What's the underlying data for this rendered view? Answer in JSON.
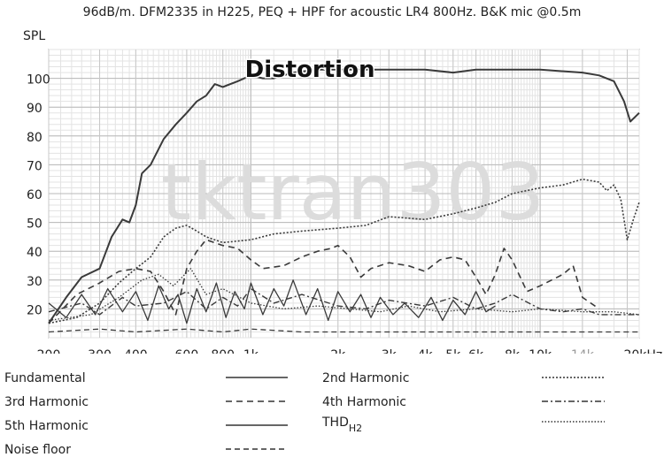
{
  "chart_data": {
    "type": "line",
    "title": "96dB/m. DFM2335 in H225, PEQ + HPF for acoustic LR4 800Hz. B&K mic @0.5m",
    "annotation": "Distortion",
    "watermark": "tktran303",
    "ylabel": "SPL",
    "xlabel": "",
    "x_scale": "log",
    "xlim": [
      200,
      22000
    ],
    "ylim": [
      10,
      110
    ],
    "grid": true,
    "yticks": [
      20,
      30,
      40,
      50,
      60,
      70,
      80,
      90,
      100
    ],
    "ytick_labels": [
      "20",
      "30",
      "40",
      "50",
      "60",
      "70",
      "80",
      "90",
      "100"
    ],
    "xticks": [
      200,
      300,
      400,
      600,
      800,
      1000,
      2000,
      3000,
      4000,
      5000,
      6000,
      8000,
      10000,
      14000,
      20000
    ],
    "xtick_labels": [
      "200",
      "300",
      "400",
      "600",
      "800",
      "1k",
      "2k",
      "3k",
      "4k",
      "5k",
      "6k",
      "8k",
      "10k",
      "14k",
      "20kHz"
    ],
    "series": [
      {
        "name": "Fundamental",
        "dash": "none",
        "width": 2,
        "points": [
          [
            200,
            15
          ],
          [
            230,
            24
          ],
          [
            260,
            31
          ],
          [
            300,
            34
          ],
          [
            330,
            45
          ],
          [
            360,
            51
          ],
          [
            380,
            50
          ],
          [
            400,
            56
          ],
          [
            420,
            67
          ],
          [
            450,
            70
          ],
          [
            500,
            79
          ],
          [
            550,
            84
          ],
          [
            600,
            88
          ],
          [
            650,
            92
          ],
          [
            700,
            94
          ],
          [
            750,
            98
          ],
          [
            800,
            97
          ],
          [
            900,
            99
          ],
          [
            1000,
            101
          ],
          [
            1100,
            100
          ],
          [
            1200,
            100
          ],
          [
            1400,
            102
          ],
          [
            1700,
            103
          ],
          [
            2000,
            103
          ],
          [
            3000,
            103
          ],
          [
            4000,
            103
          ],
          [
            5000,
            102
          ],
          [
            6000,
            103
          ],
          [
            8000,
            103
          ],
          [
            10000,
            103
          ],
          [
            14000,
            102
          ],
          [
            16000,
            101
          ],
          [
            18000,
            99
          ],
          [
            19500,
            92
          ],
          [
            20500,
            85
          ],
          [
            22000,
            88
          ]
        ]
      },
      {
        "name": "2nd Harmonic",
        "dash": "2,2",
        "width": 1.6,
        "points": [
          [
            200,
            15
          ],
          [
            250,
            17
          ],
          [
            300,
            22
          ],
          [
            350,
            29
          ],
          [
            400,
            34
          ],
          [
            450,
            38
          ],
          [
            500,
            45
          ],
          [
            550,
            48
          ],
          [
            600,
            49
          ],
          [
            650,
            47
          ],
          [
            700,
            45
          ],
          [
            800,
            43
          ],
          [
            1000,
            44
          ],
          [
            1200,
            46
          ],
          [
            1500,
            47
          ],
          [
            2000,
            48
          ],
          [
            2500,
            49
          ],
          [
            3000,
            52
          ],
          [
            4000,
            51
          ],
          [
            5000,
            53
          ],
          [
            6000,
            55
          ],
          [
            7000,
            57
          ],
          [
            8000,
            60
          ],
          [
            10000,
            62
          ],
          [
            12000,
            63
          ],
          [
            14000,
            65
          ],
          [
            16000,
            64
          ],
          [
            17000,
            61
          ],
          [
            18000,
            63
          ],
          [
            19000,
            58
          ],
          [
            20000,
            44
          ],
          [
            21000,
            51
          ],
          [
            22000,
            57
          ]
        ]
      },
      {
        "name": "3rd Harmonic",
        "dash": "7,5",
        "width": 1.6,
        "points": [
          [
            200,
            15
          ],
          [
            250,
            25
          ],
          [
            300,
            29
          ],
          [
            350,
            33
          ],
          [
            400,
            34
          ],
          [
            450,
            33
          ],
          [
            500,
            26
          ],
          [
            550,
            18
          ],
          [
            600,
            34
          ],
          [
            650,
            40
          ],
          [
            700,
            44
          ],
          [
            800,
            42
          ],
          [
            900,
            41
          ],
          [
            1000,
            37
          ],
          [
            1100,
            34
          ],
          [
            1300,
            35
          ],
          [
            1500,
            38
          ],
          [
            1700,
            40
          ],
          [
            1900,
            41
          ],
          [
            2000,
            42
          ],
          [
            2200,
            38
          ],
          [
            2400,
            31
          ],
          [
            2600,
            34
          ],
          [
            3000,
            36
          ],
          [
            3500,
            35
          ],
          [
            4000,
            33
          ],
          [
            4500,
            37
          ],
          [
            5000,
            38
          ],
          [
            5500,
            37
          ],
          [
            6000,
            31
          ],
          [
            6500,
            25
          ],
          [
            7000,
            32
          ],
          [
            7500,
            41
          ],
          [
            8000,
            37
          ],
          [
            9000,
            26
          ],
          [
            10000,
            28
          ],
          [
            12000,
            32
          ],
          [
            13000,
            35
          ],
          [
            14000,
            24
          ],
          [
            16000,
            20
          ]
        ]
      },
      {
        "name": "4th Harmonic",
        "dash": "7,3,2,3",
        "width": 1.4,
        "points": [
          [
            200,
            19
          ],
          [
            260,
            22
          ],
          [
            300,
            18
          ],
          [
            360,
            24
          ],
          [
            400,
            21
          ],
          [
            500,
            22
          ],
          [
            600,
            26
          ],
          [
            700,
            20
          ],
          [
            800,
            24
          ],
          [
            900,
            21
          ],
          [
            1000,
            27
          ],
          [
            1200,
            22
          ],
          [
            1500,
            25
          ],
          [
            2000,
            21
          ],
          [
            2500,
            20
          ],
          [
            3000,
            23
          ],
          [
            4000,
            21
          ],
          [
            5000,
            24
          ],
          [
            6000,
            20
          ],
          [
            7000,
            22
          ],
          [
            8000,
            25
          ],
          [
            10000,
            20
          ],
          [
            12000,
            19
          ],
          [
            14000,
            20
          ],
          [
            16000,
            18
          ],
          [
            20000,
            18
          ],
          [
            22000,
            18
          ]
        ]
      },
      {
        "name": "5th Harmonic",
        "dash": "none",
        "width": 1.3,
        "points": [
          [
            200,
            22
          ],
          [
            230,
            17
          ],
          [
            260,
            25
          ],
          [
            290,
            18
          ],
          [
            320,
            27
          ],
          [
            360,
            19
          ],
          [
            400,
            26
          ],
          [
            440,
            16
          ],
          [
            480,
            28
          ],
          [
            520,
            20
          ],
          [
            560,
            25
          ],
          [
            600,
            15
          ],
          [
            650,
            27
          ],
          [
            700,
            19
          ],
          [
            760,
            29
          ],
          [
            820,
            17
          ],
          [
            880,
            26
          ],
          [
            950,
            20
          ],
          [
            1000,
            29
          ],
          [
            1100,
            18
          ],
          [
            1200,
            27
          ],
          [
            1300,
            21
          ],
          [
            1400,
            30
          ],
          [
            1550,
            18
          ],
          [
            1700,
            27
          ],
          [
            1850,
            16
          ],
          [
            2000,
            26
          ],
          [
            2200,
            19
          ],
          [
            2400,
            25
          ],
          [
            2600,
            17
          ],
          [
            2800,
            24
          ],
          [
            3100,
            18
          ],
          [
            3400,
            22
          ],
          [
            3800,
            17
          ],
          [
            4200,
            24
          ],
          [
            4600,
            16
          ],
          [
            5000,
            23
          ],
          [
            5500,
            18
          ],
          [
            6000,
            26
          ],
          [
            6500,
            19
          ],
          [
            7000,
            21
          ]
        ]
      },
      {
        "name": "THD",
        "name_sub": "H2",
        "dash": "1.5,2",
        "width": 1.3,
        "points": [
          [
            200,
            16
          ],
          [
            280,
            18
          ],
          [
            350,
            24
          ],
          [
            420,
            30
          ],
          [
            480,
            32
          ],
          [
            540,
            28
          ],
          [
            620,
            34
          ],
          [
            700,
            25
          ],
          [
            800,
            27
          ],
          [
            1000,
            22
          ],
          [
            1300,
            20
          ],
          [
            1700,
            21
          ],
          [
            2200,
            20
          ],
          [
            2800,
            19
          ],
          [
            3500,
            21
          ],
          [
            4500,
            19
          ],
          [
            6000,
            20
          ],
          [
            8000,
            19
          ],
          [
            10000,
            20
          ],
          [
            14000,
            19
          ],
          [
            18000,
            19
          ],
          [
            22000,
            18
          ]
        ]
      },
      {
        "name": "Noise floor",
        "dash": "6,4",
        "width": 1.3,
        "points": [
          [
            200,
            12
          ],
          [
            300,
            13
          ],
          [
            400,
            12
          ],
          [
            600,
            13
          ],
          [
            800,
            12
          ],
          [
            1000,
            13
          ],
          [
            1500,
            12
          ],
          [
            2000,
            12
          ],
          [
            3000,
            12
          ],
          [
            5000,
            12
          ],
          [
            8000,
            12
          ],
          [
            12000,
            12
          ],
          [
            22000,
            12
          ]
        ]
      }
    ]
  }
}
